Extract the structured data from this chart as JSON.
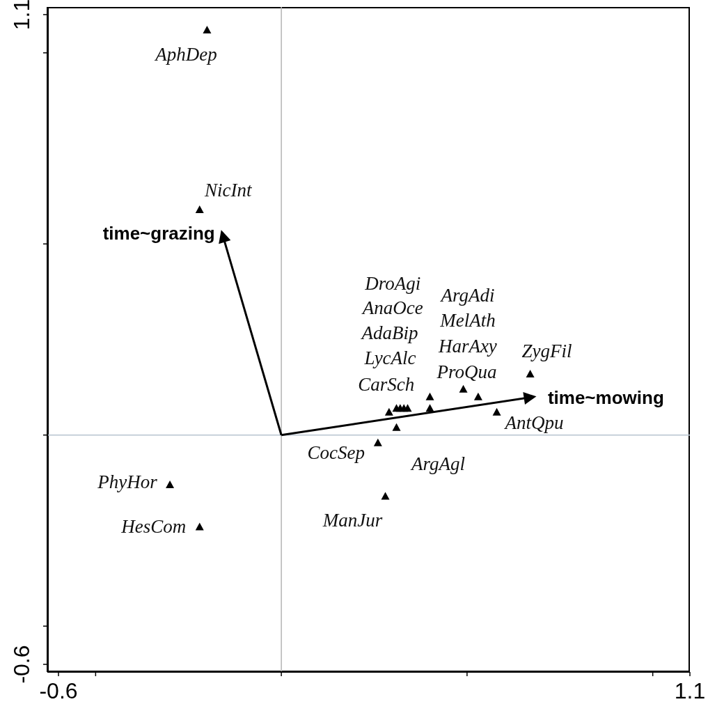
{
  "chart_data": {
    "type": "scatter",
    "xlim": [
      -0.63,
      1.1
    ],
    "ylim": [
      -0.62,
      1.12
    ],
    "xticks": [
      -0.6,
      {
        "value": -0.5,
        "label": null
      },
      {
        "value": 0,
        "label": null
      },
      {
        "value": 0.5,
        "label": null
      },
      {
        "value": 1.0,
        "label": null
      },
      1.1
    ],
    "yticks": [
      -0.6,
      {
        "value": -0.5,
        "label": null
      },
      {
        "value": 0,
        "label": null
      },
      {
        "value": 0.5,
        "label": null
      },
      {
        "value": 1.0,
        "label": null
      },
      1.1
    ],
    "grid": false,
    "marker": "triangle",
    "ref_lines": [
      {
        "axis": "x",
        "value": 0,
        "color": "#b4b4b4"
      },
      {
        "axis": "y",
        "value": 0,
        "color": "#b8c4d0"
      }
    ],
    "annotations": [
      "DroAgi",
      "AnaOce",
      "AdaBip",
      "MelAth",
      "ArgAdi"
    ],
    "series": [
      {
        "color": "#000000",
        "x": [
          -0.2,
          -0.22,
          -0.3,
          -0.22,
          0.26,
          0.28,
          0.31,
          0.58,
          0.67,
          0.29,
          0.31,
          0.32,
          0.33,
          0.34,
          0.49,
          0.53,
          0.4,
          0.4
        ],
        "values": [
          1.06,
          0.59,
          -0.13,
          -0.24,
          -0.02,
          -0.16,
          0.02,
          0.06,
          0.16,
          0.06,
          0.07,
          0.07,
          0.07,
          0.07,
          0.12,
          0.1,
          0.07,
          0.1
        ],
        "value_labels": [
          "AphDep",
          "NicInt",
          "PhyHor",
          "HesCom",
          "CocSep",
          "ManJur",
          "ArgAgl",
          "AntQpu",
          "ZygFil",
          "CarSch",
          "LycAlc",
          null,
          null,
          null,
          "ProQua",
          "HarAxy",
          null,
          null
        ]
      },
      {
        "type": "line",
        "name": "time~grazing",
        "color": "#000000",
        "marker": "none",
        "x": [
          0,
          -0.16
        ],
        "values": [
          0,
          0.53
        ]
      },
      {
        "type": "line",
        "name": "time~mowing",
        "color": "#000000",
        "marker": "none",
        "x": [
          0,
          0.68
        ],
        "values": [
          0,
          0.1
        ]
      }
    ]
  }
}
